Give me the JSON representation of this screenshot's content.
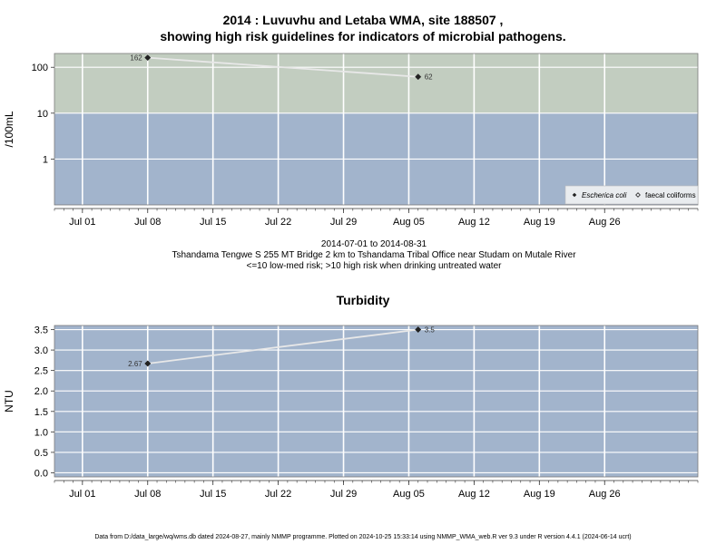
{
  "title": {
    "line1": "2014 : Luvuvhu and Letaba WMA, site 188507 ,",
    "line2": "showing high risk guidelines for indicators of microbial pathogens."
  },
  "subtitle": {
    "line1": "2014-07-01 to 2014-08-31",
    "line2": "Tshandama Tengwe S 255 MT Bridge 2 km to Tshandama Tribal Office near Studam on Mutale River",
    "line3": "<=10 low-med risk; >10 high risk when drinking untreated water"
  },
  "footer": "Data from D:/data_large/wq/wms.db dated 2024-08-27, mainly NMMP programme. Plotted on 2024-10-25 15:33:14 using NMMP_WMA_web.R ver 9.3 under R version 4.4.1 (2024-06-14 ucrt)",
  "chart_data": [
    {
      "type": "line",
      "title": "",
      "ylabel": "/100mL",
      "xlabel": "",
      "yscale": "log",
      "ylim": [
        0.1,
        200
      ],
      "xlim": [
        "2014-06-28",
        "2014-09-05"
      ],
      "yticks": [
        1,
        10,
        100
      ],
      "ytick_labels": [
        "1",
        "10",
        "100"
      ],
      "xticks": [
        "2014-07-01",
        "2014-07-08",
        "2014-07-15",
        "2014-07-22",
        "2014-07-29",
        "2014-08-05",
        "2014-08-12",
        "2014-08-19",
        "2014-08-26"
      ],
      "xtick_labels": [
        "Jul 01",
        "Jul 08",
        "Jul 15",
        "Jul 22",
        "Jul 29",
        "Aug 05",
        "Aug 12",
        "Aug 19",
        "Aug 26"
      ],
      "bands": [
        {
          "from": 10,
          "to": 200,
          "color": "#c2cdc0",
          "label": ">10 high risk"
        },
        {
          "from": 0.1,
          "to": 10,
          "color": "#a2b4cc",
          "label": "<=10 low-med risk"
        }
      ],
      "grid": true,
      "legend": "bottom-right",
      "series": [
        {
          "name": "Escherica coli",
          "marker": "filled-diamond",
          "x": [
            "2014-07-08",
            "2014-08-06"
          ],
          "y": [
            162,
            62
          ],
          "labels": [
            "162",
            "62"
          ]
        },
        {
          "name": "faecal coliforms",
          "marker": "open-diamond",
          "x": [],
          "y": [],
          "labels": []
        }
      ]
    },
    {
      "type": "line",
      "title": "Turbidity",
      "ylabel": "NTU",
      "xlabel": "",
      "ylim": [
        -0.1,
        3.6
      ],
      "xlim": [
        "2014-06-28",
        "2014-09-05"
      ],
      "yticks": [
        0,
        0.5,
        1,
        1.5,
        2,
        2.5,
        3,
        3.5
      ],
      "ytick_labels": [
        "0.0",
        "0.5",
        "1.0",
        "1.5",
        "2.0",
        "2.5",
        "3.0",
        "3.5"
      ],
      "xticks": [
        "2014-07-01",
        "2014-07-08",
        "2014-07-15",
        "2014-07-22",
        "2014-07-29",
        "2014-08-05",
        "2014-08-12",
        "2014-08-19",
        "2014-08-26"
      ],
      "xtick_labels": [
        "Jul 01",
        "Jul 08",
        "Jul 15",
        "Jul 22",
        "Jul 29",
        "Aug 05",
        "Aug 12",
        "Aug 19",
        "Aug 26"
      ],
      "bands": [
        {
          "from": -0.1,
          "to": 3.6,
          "color": "#a2b4cc",
          "label": ""
        }
      ],
      "grid": true,
      "series": [
        {
          "name": "",
          "marker": "filled-diamond",
          "x": [
            "2014-07-08",
            "2014-08-06"
          ],
          "y": [
            2.67,
            3.5
          ],
          "labels": [
            "2.67",
            "3.5"
          ]
        }
      ]
    }
  ],
  "colors": {
    "line": "#e8e8e8",
    "grid": "#ffffff",
    "marker": "#222222",
    "frame": "#7a7a7a"
  }
}
